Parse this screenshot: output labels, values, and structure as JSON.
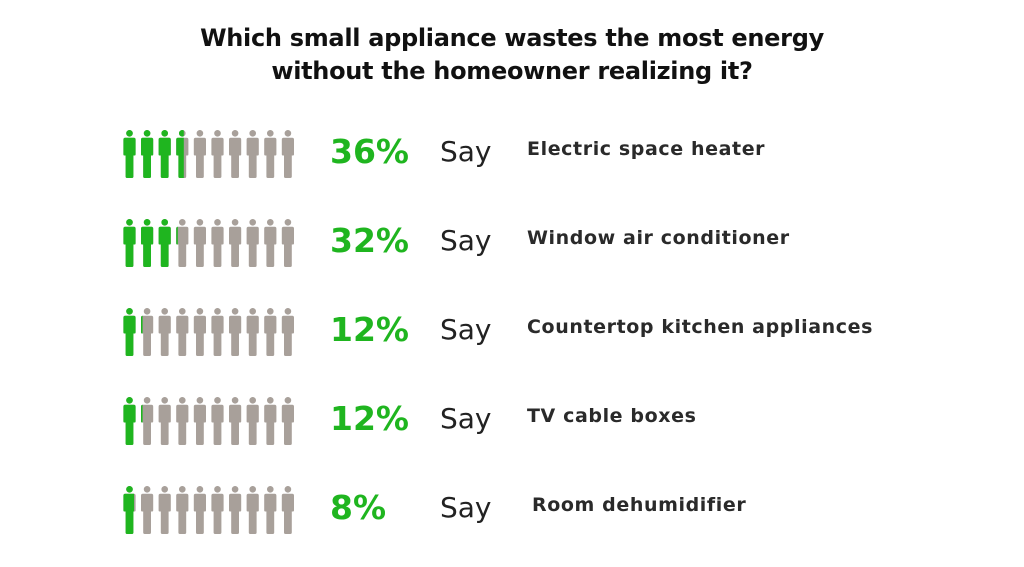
{
  "colors": {
    "highlight": "#1fb51f",
    "person": "#a8a09a",
    "text": "#222222"
  },
  "title": {
    "line1": "Which small appliance wastes the most energy",
    "line2": "without the homeowner realizing it?"
  },
  "say_label": "Say",
  "icon_name": "person-icon",
  "people_per_row": 10,
  "chart_data": {
    "type": "pictograph",
    "title": "Which small appliance wastes the most energy without the homeowner realizing it?",
    "unit": "%",
    "categories": [
      "Electric space heater",
      "Window air conditioner",
      "Countertop kitchen appliances",
      "TV cable boxes",
      "Room dehumidifier"
    ],
    "values": [
      36,
      32,
      12,
      12,
      8
    ],
    "labels": [
      "36%",
      "32%",
      "12%",
      "12%",
      "8%"
    ]
  }
}
